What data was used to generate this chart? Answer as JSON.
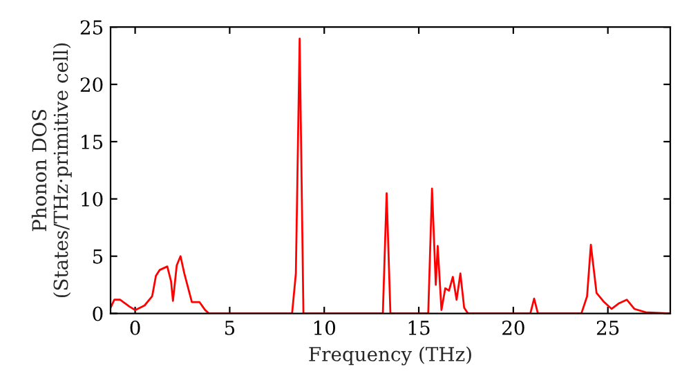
{
  "chart_data": {
    "type": "line",
    "xlabel": "Frequency (THz)",
    "ylabel": "Phonon DOS\n(States/THz·primitive cell)",
    "x": [
      -1.3,
      -1.1,
      -0.8,
      -0.3,
      0.0,
      0.5,
      0.9,
      1.1,
      1.3,
      1.7,
      1.9,
      2.0,
      2.2,
      2.4,
      2.6,
      3.0,
      3.4,
      3.7,
      3.9,
      8.3,
      8.5,
      8.7,
      8.9,
      13.1,
      13.3,
      13.5,
      15.5,
      15.7,
      15.9,
      16.0,
      16.2,
      16.4,
      16.6,
      16.8,
      17.0,
      17.2,
      17.4,
      17.6,
      20.9,
      21.1,
      21.3,
      23.6,
      23.9,
      24.1,
      24.4,
      24.8,
      25.2,
      25.6,
      26.0,
      26.4,
      27.0,
      28.3
    ],
    "series": [
      {
        "color": "#ff0000",
        "values": [
          0.5,
          1.2,
          1.2,
          0.6,
          0.3,
          0.7,
          1.5,
          3.3,
          3.8,
          4.1,
          2.8,
          1.1,
          4.2,
          5.0,
          3.5,
          1.0,
          1.0,
          0.3,
          0,
          0,
          3.5,
          24,
          0,
          0,
          10.5,
          0,
          0,
          10.9,
          2.5,
          5.9,
          0.3,
          2.2,
          2.0,
          3.2,
          1.2,
          3.5,
          0.5,
          0,
          0,
          1.3,
          0,
          0,
          1.5,
          6.0,
          1.8,
          1.0,
          0.4,
          0.9,
          1.2,
          0.4,
          0.1,
          0
        ]
      }
    ],
    "xlim": [
      -1.3,
      28.3
    ],
    "ylim": [
      0,
      25
    ],
    "xticks": [
      0,
      5,
      10,
      15,
      20,
      25
    ],
    "yticks": [
      0,
      5,
      10,
      15,
      20,
      25
    ],
    "grid": false,
    "marker": "none",
    "line_style": "solid"
  }
}
